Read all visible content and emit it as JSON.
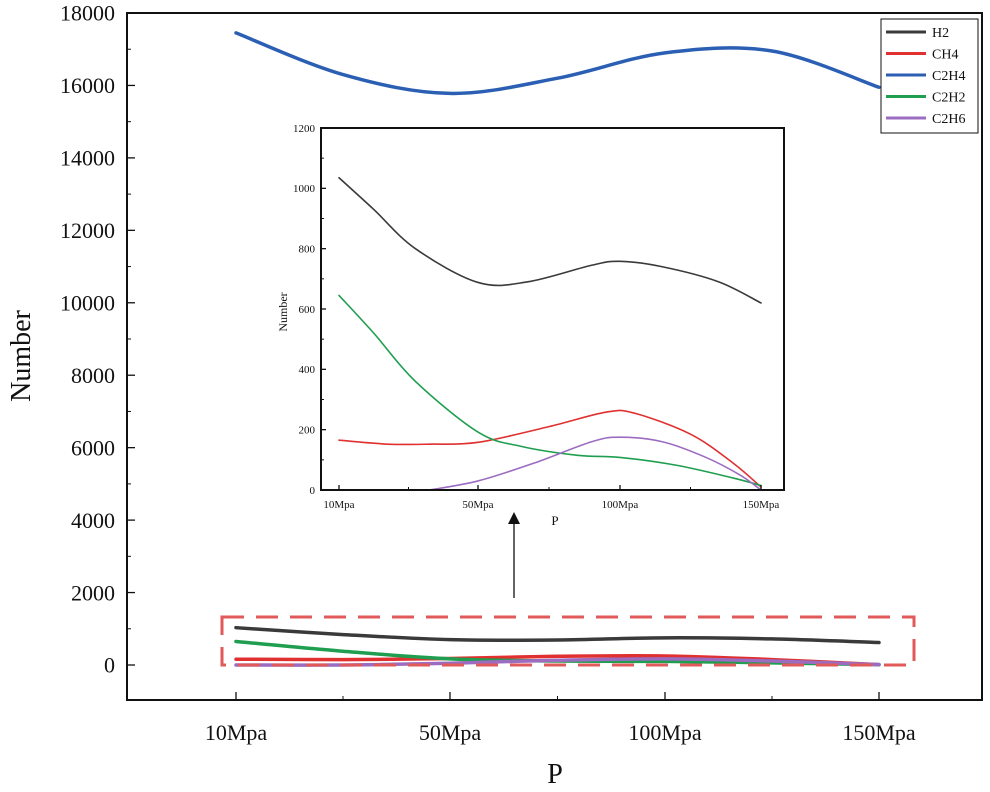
{
  "chart_data": [
    {
      "id": "main",
      "type": "line",
      "title": "",
      "xlabel": "P",
      "ylabel": "Number",
      "categories": [
        "10Mpa",
        "50Mpa",
        "100Mpa",
        "150Mpa"
      ],
      "xlim": [
        0,
        3
      ],
      "ylim": [
        -900,
        18000
      ],
      "yticks": [
        0,
        2000,
        4000,
        6000,
        8000,
        10000,
        12000,
        14000,
        16000,
        18000
      ],
      "grid": false,
      "legend": "top-right",
      "series": [
        {
          "name": "H2",
          "color": "#3a3a3a",
          "points": [
            [
              0,
              1030
            ],
            [
              0.5,
              840
            ],
            [
              1,
              700
            ],
            [
              1.5,
              690
            ],
            [
              2,
              750
            ],
            [
              2.5,
              720
            ],
            [
              3,
              620
            ]
          ]
        },
        {
          "name": "CH4",
          "color": "#e03030",
          "points": [
            [
              0,
              160
            ],
            [
              0.5,
              150
            ],
            [
              1,
              180
            ],
            [
              1.5,
              240
            ],
            [
              2,
              250
            ],
            [
              2.5,
              150
            ],
            [
              3,
              10
            ]
          ]
        },
        {
          "name": "C2H4",
          "color": "#2b5fb4",
          "points": [
            [
              0,
              17450
            ],
            [
              0.5,
              16300
            ],
            [
              1,
              15780
            ],
            [
              1.5,
              16200
            ],
            [
              2,
              16900
            ],
            [
              2.5,
              16950
            ],
            [
              3,
              15950
            ]
          ]
        },
        {
          "name": "C2H2",
          "color": "#1f9e50",
          "points": [
            [
              0,
              650
            ],
            [
              0.5,
              380
            ],
            [
              1,
              170
            ],
            [
              1.5,
              110
            ],
            [
              2,
              100
            ],
            [
              2.5,
              60
            ],
            [
              3,
              10
            ]
          ]
        },
        {
          "name": "C2H6",
          "color": "#9b6cc0",
          "points": [
            [
              0,
              0
            ],
            [
              0.5,
              0
            ],
            [
              1,
              50
            ],
            [
              1.5,
              130
            ],
            [
              2,
              170
            ],
            [
              2.5,
              110
            ],
            [
              3,
              10
            ]
          ]
        }
      ]
    },
    {
      "id": "inset",
      "type": "line",
      "title": "",
      "xlabel": "P",
      "ylabel": "Number",
      "categories": [
        "10Mpa",
        "50Mpa",
        "100Mpa",
        "150Mpa"
      ],
      "xlim": [
        0,
        3
      ],
      "ylim": [
        0,
        1200
      ],
      "yticks": [
        0,
        200,
        400,
        600,
        800,
        1000,
        1200
      ],
      "grid": false,
      "series": [
        {
          "name": "H2",
          "color": "#3a3a3a",
          "points": [
            [
              0,
              1035
            ],
            [
              0.25,
              930
            ],
            [
              0.55,
              800
            ],
            [
              1,
              688
            ],
            [
              1.35,
              690
            ],
            [
              1.8,
              745
            ],
            [
              2,
              758
            ],
            [
              2.3,
              740
            ],
            [
              2.7,
              690
            ],
            [
              3,
              620
            ]
          ]
        },
        {
          "name": "CH4",
          "color": "#e03030",
          "points": [
            [
              0,
              165
            ],
            [
              0.35,
              152
            ],
            [
              0.65,
              152
            ],
            [
              1,
              158
            ],
            [
              1.5,
              210
            ],
            [
              1.9,
              258
            ],
            [
              2.1,
              255
            ],
            [
              2.5,
              185
            ],
            [
              2.8,
              90
            ],
            [
              3,
              10
            ]
          ]
        },
        {
          "name": "C2H2",
          "color": "#1f9e50",
          "points": [
            [
              0,
              645
            ],
            [
              0.25,
              520
            ],
            [
              0.55,
              360
            ],
            [
              1,
              192
            ],
            [
              1.3,
              145
            ],
            [
              1.7,
              115
            ],
            [
              2,
              108
            ],
            [
              2.4,
              82
            ],
            [
              2.8,
              40
            ],
            [
              3,
              15
            ]
          ]
        },
        {
          "name": "C2H6",
          "color": "#9b6cc0",
          "points": [
            [
              0.65,
              0
            ],
            [
              1,
              30
            ],
            [
              1.4,
              90
            ],
            [
              1.8,
              160
            ],
            [
              2,
              175
            ],
            [
              2.3,
              160
            ],
            [
              2.6,
              110
            ],
            [
              2.85,
              50
            ],
            [
              3,
              0
            ]
          ]
        }
      ]
    }
  ],
  "legend": [
    {
      "name": "H2",
      "color": "#3a3a3a"
    },
    {
      "name": "CH4",
      "color": "#e03030"
    },
    {
      "name": "C2H4",
      "color": "#2b5fb4"
    },
    {
      "name": "C2H2",
      "color": "#1f9e50"
    },
    {
      "name": "C2H6",
      "color": "#9b6cc0"
    }
  ],
  "highlight_box_color": "#e05a5a"
}
